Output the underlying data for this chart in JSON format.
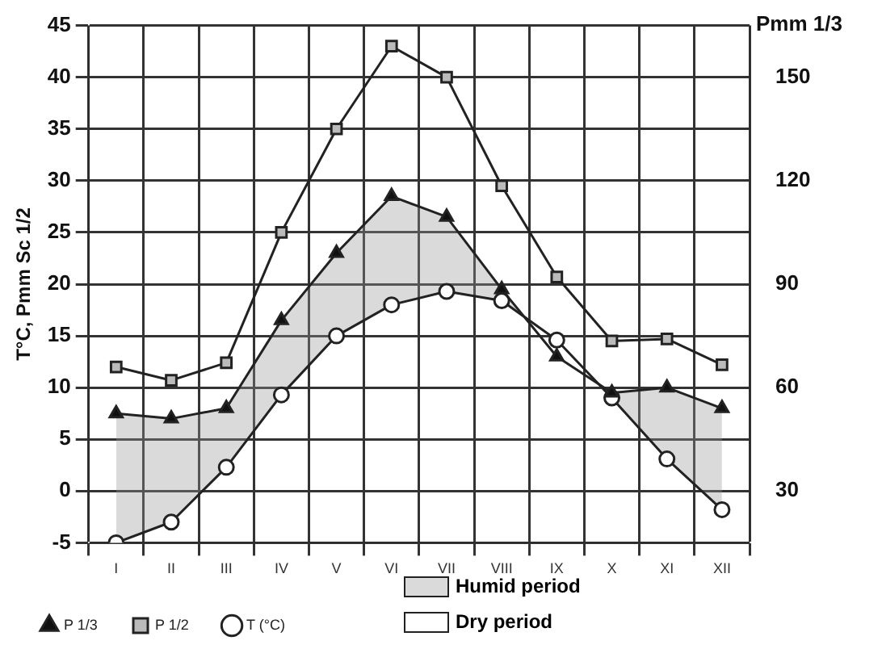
{
  "chart_data": {
    "type": "line",
    "ylabel": "T°C, Pmm Sc 1/2",
    "y2label": "Pmm 1/3",
    "categories": [
      "I",
      "II",
      "III",
      "IV",
      "V",
      "VI",
      "VII",
      "VIII",
      "IX",
      "X",
      "XI",
      "XII"
    ],
    "series": [
      {
        "name": "T (°C)",
        "color": "#222222",
        "marker": "circle",
        "values": [
          -5,
          -3,
          2.3,
          9.3,
          15,
          18,
          19.3,
          18.4,
          14.6,
          9,
          3.1,
          -1.8
        ]
      },
      {
        "name": "P 1/2",
        "color": "#222222",
        "marker": "square",
        "values": [
          12,
          10.7,
          12.4,
          25,
          35,
          43,
          40,
          29.5,
          20.7,
          14.5,
          14.7,
          12.2
        ]
      },
      {
        "name": "P 1/3",
        "color": "#222222",
        "marker": "triangle",
        "values": [
          7.5,
          7,
          8,
          16.5,
          23,
          28.5,
          26.5,
          19.5,
          13,
          9.5,
          10,
          8
        ],
        "lower": [
          -5,
          -3,
          2.3,
          9.3,
          15,
          18,
          19.3,
          18.4,
          14.6,
          9,
          3.1,
          -1.8
        ],
        "upper": [
          7.5,
          7,
          8,
          16.5,
          23,
          28.5,
          26.5,
          19.5,
          13,
          9.5,
          10,
          8
        ]
      }
    ],
    "ylim": [
      -5,
      45
    ],
    "yticks": [
      -5,
      0,
      5,
      10,
      15,
      20,
      25,
      30,
      35,
      40,
      45
    ],
    "y2lim": [
      15,
      165
    ],
    "y2ticks": [
      30,
      60,
      90,
      120,
      150
    ],
    "grid": true,
    "legend": "bottom",
    "line_style": "solid",
    "annotations": [
      "Humid period",
      "Dry period"
    ]
  }
}
